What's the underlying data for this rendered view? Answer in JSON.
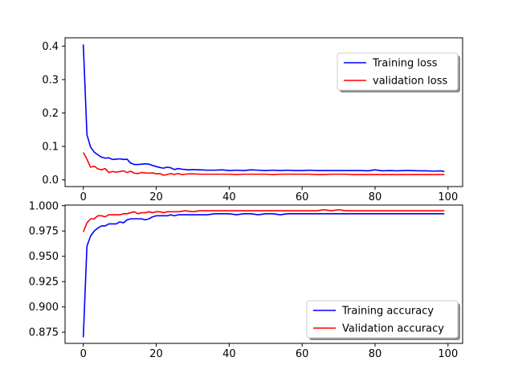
{
  "chart_data": [
    {
      "type": "line",
      "title": "",
      "xlabel": "",
      "ylabel": "",
      "xlim": [
        -5,
        104
      ],
      "ylim": [
        -0.02,
        0.425
      ],
      "xticks": [
        0,
        20,
        40,
        60,
        80,
        100
      ],
      "xtick_labels": [
        "0",
        "20",
        "40",
        "60",
        "80",
        "100"
      ],
      "yticks": [
        0.0,
        0.1,
        0.2,
        0.3,
        0.4
      ],
      "ytick_labels": [
        "0.0",
        "0.1",
        "0.2",
        "0.3",
        "0.4"
      ],
      "legend_position": "top-right",
      "series": [
        {
          "name": "Training loss",
          "color": "#0000ff",
          "x": [
            0,
            1,
            2,
            3,
            4,
            5,
            6,
            7,
            8,
            9,
            10,
            11,
            12,
            13,
            14,
            15,
            16,
            17,
            18,
            19,
            20,
            21,
            22,
            23,
            24,
            25,
            26,
            27,
            28,
            29,
            30,
            32,
            34,
            36,
            38,
            40,
            42,
            44,
            46,
            48,
            50,
            52,
            54,
            56,
            58,
            60,
            62,
            64,
            66,
            68,
            70,
            72,
            74,
            76,
            78,
            80,
            82,
            84,
            86,
            88,
            90,
            92,
            94,
            96,
            98,
            99
          ],
          "values": [
            0.405,
            0.135,
            0.098,
            0.083,
            0.075,
            0.068,
            0.065,
            0.066,
            0.061,
            0.062,
            0.063,
            0.061,
            0.062,
            0.05,
            0.046,
            0.046,
            0.047,
            0.048,
            0.047,
            0.043,
            0.04,
            0.037,
            0.035,
            0.038,
            0.036,
            0.031,
            0.034,
            0.032,
            0.031,
            0.03,
            0.031,
            0.03,
            0.029,
            0.029,
            0.03,
            0.028,
            0.029,
            0.028,
            0.03,
            0.029,
            0.028,
            0.029,
            0.028,
            0.029,
            0.028,
            0.028,
            0.029,
            0.028,
            0.028,
            0.028,
            0.028,
            0.028,
            0.028,
            0.028,
            0.027,
            0.03,
            0.027,
            0.028,
            0.027,
            0.028,
            0.028,
            0.027,
            0.027,
            0.026,
            0.027,
            0.025
          ]
        },
        {
          "name": "validation loss",
          "color": "#ff0000",
          "x": [
            0,
            1,
            2,
            3,
            4,
            5,
            6,
            7,
            8,
            9,
            10,
            11,
            12,
            13,
            14,
            15,
            16,
            17,
            18,
            19,
            20,
            21,
            22,
            23,
            24,
            25,
            26,
            27,
            28,
            29,
            30,
            32,
            34,
            36,
            38,
            40,
            42,
            44,
            46,
            48,
            50,
            52,
            54,
            56,
            58,
            60,
            62,
            64,
            66,
            68,
            70,
            72,
            74,
            76,
            78,
            80,
            82,
            84,
            86,
            88,
            90,
            92,
            94,
            96,
            98,
            99
          ],
          "values": [
            0.082,
            0.062,
            0.038,
            0.041,
            0.033,
            0.03,
            0.034,
            0.022,
            0.025,
            0.023,
            0.025,
            0.027,
            0.022,
            0.026,
            0.02,
            0.019,
            0.022,
            0.021,
            0.02,
            0.021,
            0.018,
            0.019,
            0.014,
            0.016,
            0.019,
            0.016,
            0.019,
            0.016,
            0.017,
            0.018,
            0.018,
            0.017,
            0.017,
            0.017,
            0.017,
            0.017,
            0.016,
            0.017,
            0.017,
            0.017,
            0.017,
            0.016,
            0.017,
            0.017,
            0.017,
            0.017,
            0.017,
            0.016,
            0.016,
            0.017,
            0.017,
            0.017,
            0.016,
            0.016,
            0.016,
            0.016,
            0.016,
            0.016,
            0.016,
            0.016,
            0.016,
            0.016,
            0.016,
            0.016,
            0.016,
            0.016
          ]
        }
      ]
    },
    {
      "type": "line",
      "title": "",
      "xlabel": "",
      "ylabel": "",
      "xlim": [
        -5,
        104
      ],
      "ylim": [
        0.864,
        1.0006
      ],
      "xticks": [
        0,
        20,
        40,
        60,
        80,
        100
      ],
      "xtick_labels": [
        "0",
        "20",
        "40",
        "60",
        "80",
        "100"
      ],
      "yticks": [
        0.875,
        0.9,
        0.925,
        0.95,
        0.975,
        1.0
      ],
      "ytick_labels": [
        "0.875",
        "0.900",
        "0.925",
        "0.950",
        "0.975",
        "1.000"
      ],
      "legend_position": "bottom-right",
      "series": [
        {
          "name": "Training accuracy",
          "color": "#0000ff",
          "x": [
            0,
            1,
            2,
            3,
            4,
            5,
            6,
            7,
            8,
            9,
            10,
            11,
            12,
            13,
            14,
            15,
            16,
            17,
            18,
            19,
            20,
            21,
            22,
            23,
            24,
            25,
            26,
            28,
            30,
            32,
            34,
            36,
            38,
            40,
            42,
            44,
            46,
            48,
            50,
            52,
            54,
            56,
            58,
            60,
            62,
            64,
            66,
            68,
            70,
            72,
            74,
            76,
            78,
            80,
            82,
            84,
            86,
            88,
            90,
            92,
            94,
            96,
            98,
            99
          ],
          "values": [
            0.87,
            0.96,
            0.97,
            0.975,
            0.978,
            0.98,
            0.98,
            0.982,
            0.982,
            0.982,
            0.984,
            0.983,
            0.986,
            0.987,
            0.987,
            0.987,
            0.987,
            0.986,
            0.987,
            0.989,
            0.99,
            0.99,
            0.99,
            0.99,
            0.991,
            0.99,
            0.991,
            0.991,
            0.991,
            0.991,
            0.991,
            0.992,
            0.992,
            0.992,
            0.991,
            0.992,
            0.992,
            0.991,
            0.992,
            0.992,
            0.991,
            0.992,
            0.992,
            0.992,
            0.992,
            0.992,
            0.992,
            0.992,
            0.992,
            0.992,
            0.992,
            0.992,
            0.992,
            0.992,
            0.992,
            0.992,
            0.992,
            0.992,
            0.992,
            0.992,
            0.992,
            0.992,
            0.992,
            0.992
          ]
        },
        {
          "name": "Validation accuracy",
          "color": "#ff0000",
          "x": [
            0,
            1,
            2,
            3,
            4,
            5,
            6,
            7,
            8,
            9,
            10,
            11,
            12,
            13,
            14,
            15,
            16,
            17,
            18,
            19,
            20,
            21,
            22,
            23,
            24,
            25,
            26,
            28,
            30,
            32,
            34,
            36,
            38,
            40,
            42,
            44,
            46,
            48,
            50,
            52,
            54,
            56,
            58,
            60,
            62,
            64,
            66,
            68,
            70,
            72,
            74,
            76,
            78,
            80,
            82,
            84,
            86,
            88,
            90,
            92,
            94,
            96,
            98,
            99
          ],
          "values": [
            0.974,
            0.983,
            0.987,
            0.987,
            0.99,
            0.99,
            0.989,
            0.991,
            0.991,
            0.991,
            0.991,
            0.992,
            0.992,
            0.993,
            0.994,
            0.992,
            0.993,
            0.993,
            0.994,
            0.993,
            0.994,
            0.994,
            0.993,
            0.994,
            0.994,
            0.994,
            0.994,
            0.995,
            0.994,
            0.995,
            0.995,
            0.995,
            0.995,
            0.995,
            0.995,
            0.995,
            0.995,
            0.995,
            0.995,
            0.995,
            0.995,
            0.995,
            0.995,
            0.995,
            0.995,
            0.995,
            0.996,
            0.995,
            0.996,
            0.995,
            0.995,
            0.995,
            0.995,
            0.995,
            0.995,
            0.995,
            0.995,
            0.995,
            0.995,
            0.995,
            0.995,
            0.995,
            0.995,
            0.995
          ]
        }
      ]
    }
  ]
}
